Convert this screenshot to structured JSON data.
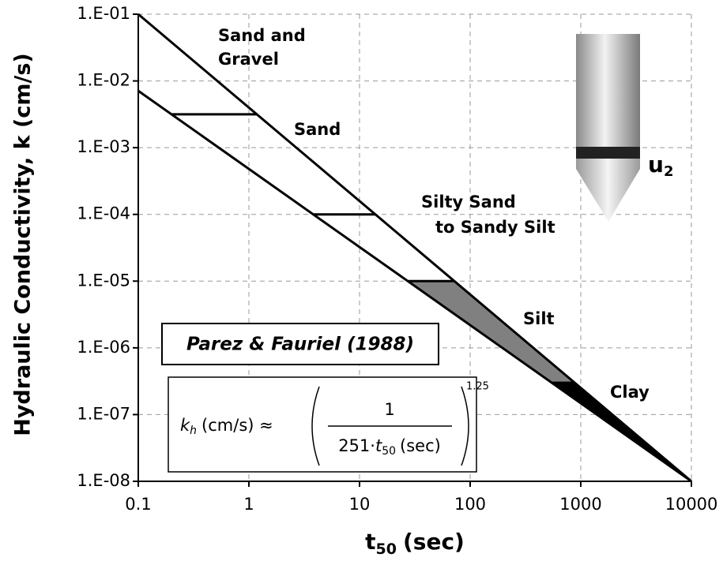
{
  "chart_data": {
    "type": "line",
    "y_axis_label": "Hydraulic Conductivity, k (cm/s)",
    "x_axis_label": {
      "main": "t",
      "sub": "50",
      "rest": "(sec)"
    },
    "log_x": true,
    "log_y": true,
    "grid": true,
    "xlim": [
      0.1,
      10000
    ],
    "xticks": [
      0.1,
      1,
      10,
      100,
      1000,
      10000
    ],
    "ylim": [
      1e-08,
      0.1
    ],
    "yticks": [
      {
        "value": 1e-08,
        "label": "1.E-08"
      },
      {
        "value": 1e-07,
        "label": "1.E-07"
      },
      {
        "value": 1e-06,
        "label": "1.E-06"
      },
      {
        "value": 1e-05,
        "label": "1.E-05"
      },
      {
        "value": 0.0001,
        "label": "1.E-04"
      },
      {
        "value": 0.001,
        "label": "1.E-03"
      },
      {
        "value": 0.01,
        "label": "1.E-02"
      },
      {
        "value": 0.1,
        "label": "1.E-01"
      }
    ],
    "series": [
      {
        "color": "#000000",
        "x": [
          0.1,
          10000
        ],
        "values": [
          0.1,
          1e-08
        ]
      },
      {
        "color": "#000000",
        "x": [
          0.1,
          10000
        ],
        "values": [
          0.0071,
          1e-08
        ]
      }
    ],
    "dividers": [
      0.00316,
      0.0001,
      1e-05,
      3e-07
    ],
    "zones": [
      {
        "label": [
          "Sand and",
          "Gravel"
        ],
        "fill": "none"
      },
      {
        "label": [
          "Sand"
        ],
        "fill": "none"
      },
      {
        "label": [
          "Silty Sand",
          "to Sandy Silt"
        ],
        "fill": "none"
      },
      {
        "label": [
          "Silt"
        ],
        "fill": "#808080"
      },
      {
        "label": [
          "Clay"
        ],
        "fill": "#000000"
      }
    ],
    "reference": "Parez & Fauriel (1988)",
    "formula": {
      "k": "k",
      "k_sub": "h",
      "lhs_rest": "(cm/s) ≈",
      "numerator": "1",
      "den_coef": "251·",
      "den_t": "t",
      "den_sub": "50",
      "den_rest": "(sec)",
      "exponent": "1.25"
    },
    "probe_label": {
      "main": "u",
      "sub": "2"
    }
  }
}
